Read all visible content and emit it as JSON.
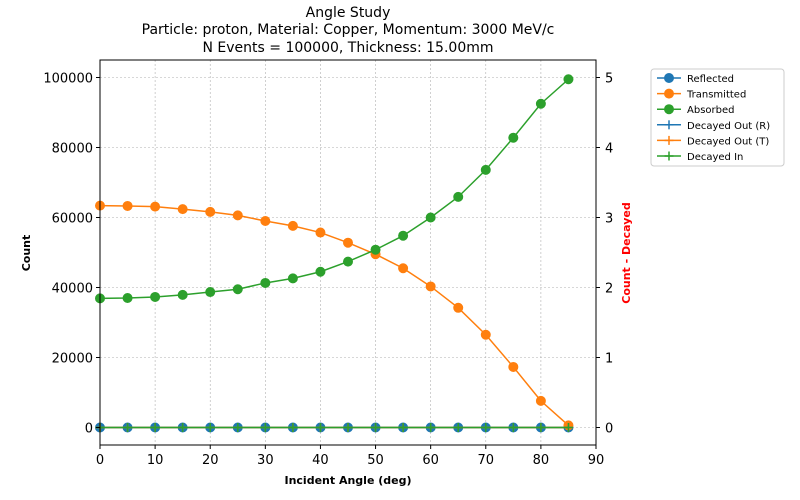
{
  "chart_data": {
    "type": "line",
    "title_lines": [
      "Angle Study",
      "Particle: proton, Material: Copper, Momentum: 3000 MeV/c",
      "N Events = 100000, Thickness: 15.00mm"
    ],
    "xlabel": "Incident Angle (deg)",
    "ylabel": "Count",
    "y2label": "Count - Decayed",
    "y2label_color": "#ff0000",
    "xlim": [
      0,
      90
    ],
    "ylim": [
      -5000,
      105000
    ],
    "y2lim": [
      -0.25,
      5.25
    ],
    "xticks": [
      0,
      10,
      20,
      30,
      40,
      50,
      60,
      70,
      80,
      90
    ],
    "yticks": [
      0,
      20000,
      40000,
      60000,
      80000,
      100000
    ],
    "y2ticks": [
      0,
      1,
      2,
      3,
      4,
      5
    ],
    "grid": true,
    "legend_position": "outside-right",
    "x": [
      0,
      5,
      10,
      15,
      20,
      25,
      30,
      35,
      40,
      45,
      50,
      55,
      60,
      65,
      70,
      75,
      80,
      85
    ],
    "series": [
      {
        "name": "Reflected",
        "axis": "left",
        "marker": "circle",
        "color": "#1f77b4",
        "values": [
          0,
          0,
          0,
          0,
          0,
          0,
          0,
          0,
          0,
          0,
          0,
          0,
          0,
          0,
          0,
          0,
          0,
          0
        ]
      },
      {
        "name": "Transmitted",
        "axis": "left",
        "marker": "circle",
        "color": "#ff7f0e",
        "values": [
          63400,
          63300,
          63100,
          62400,
          61600,
          60600,
          59000,
          57600,
          55700,
          52800,
          49500,
          45500,
          40300,
          34200,
          26500,
          17300,
          7600,
          600
        ]
      },
      {
        "name": "Absorbed",
        "axis": "left",
        "marker": "circle",
        "color": "#2ca02c",
        "values": [
          36900,
          37000,
          37300,
          37900,
          38700,
          39500,
          41300,
          42600,
          44500,
          47400,
          50800,
          54800,
          60000,
          65900,
          73600,
          82800,
          92500,
          99500
        ]
      },
      {
        "name": "Decayed Out (R)",
        "axis": "right",
        "marker": "plus",
        "color": "#1f77b4",
        "values": [
          0,
          0,
          0,
          0,
          0,
          0,
          0,
          0,
          0,
          0,
          0,
          0,
          0,
          0,
          0,
          0,
          0,
          0
        ]
      },
      {
        "name": "Decayed Out (T)",
        "axis": "right",
        "marker": "plus",
        "color": "#ff7f0e",
        "values": [
          0,
          0,
          0,
          0,
          0,
          0,
          0,
          0,
          0,
          0,
          0,
          0,
          0,
          0,
          0,
          0,
          0,
          0
        ]
      },
      {
        "name": "Decayed In",
        "axis": "right",
        "marker": "plus",
        "color": "#2ca02c",
        "values": [
          0,
          0,
          0,
          0,
          0,
          0,
          0,
          0,
          0,
          0,
          0,
          0,
          0,
          0,
          0,
          0,
          0,
          0
        ]
      }
    ]
  }
}
